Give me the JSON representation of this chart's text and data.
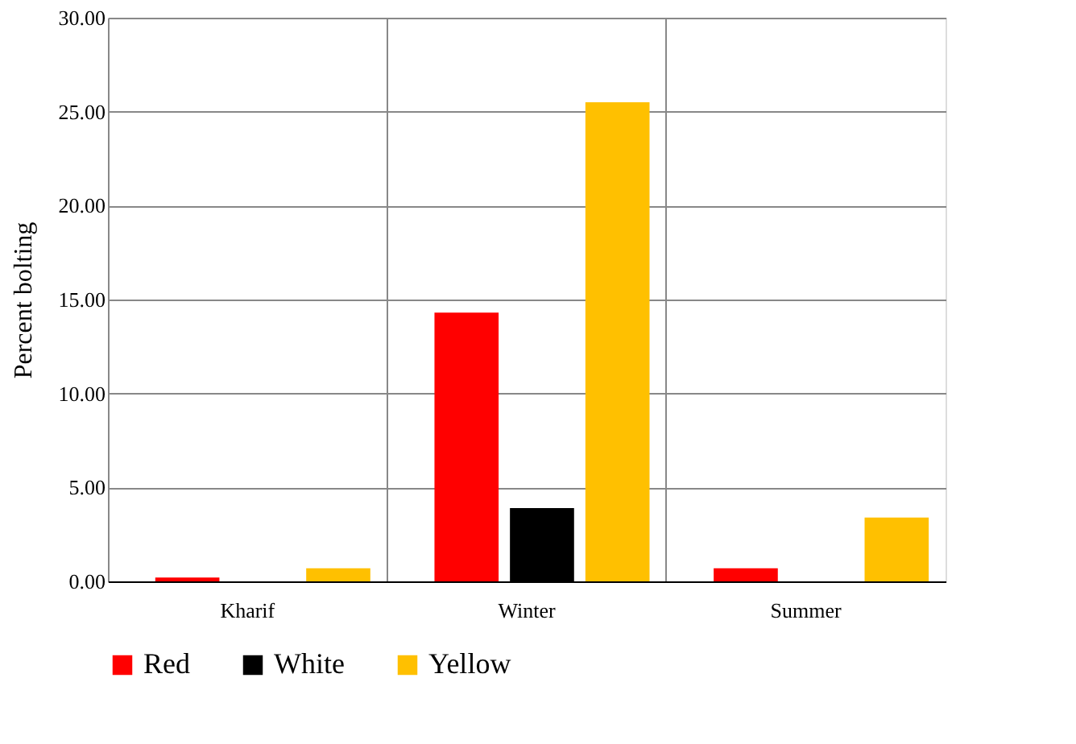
{
  "chart_data": {
    "type": "bar",
    "ylabel": "Percent bolting",
    "categories": [
      "Kharif",
      "Winter",
      "Summer"
    ],
    "series": [
      {
        "name": "Red",
        "color": "#ff0000",
        "values": [
          0.2,
          14.3,
          0.7
        ]
      },
      {
        "name": "White",
        "color": "#000000",
        "values": [
          0,
          3.9,
          0
        ]
      },
      {
        "name": "Yellow",
        "color": "#ffc000",
        "values": [
          0.7,
          25.5,
          3.4
        ]
      }
    ],
    "ylim": [
      0,
      30
    ],
    "yticks": [
      {
        "value": 0,
        "label": "0.00"
      },
      {
        "value": 5,
        "label": "5.00"
      },
      {
        "value": 10,
        "label": "10.00"
      },
      {
        "value": 15,
        "label": "15.00"
      },
      {
        "value": 20,
        "label": "20.00"
      },
      {
        "value": 25,
        "label": "25.00"
      },
      {
        "value": 30,
        "label": "30.00"
      }
    ],
    "grid": true,
    "legend": "bottom"
  }
}
